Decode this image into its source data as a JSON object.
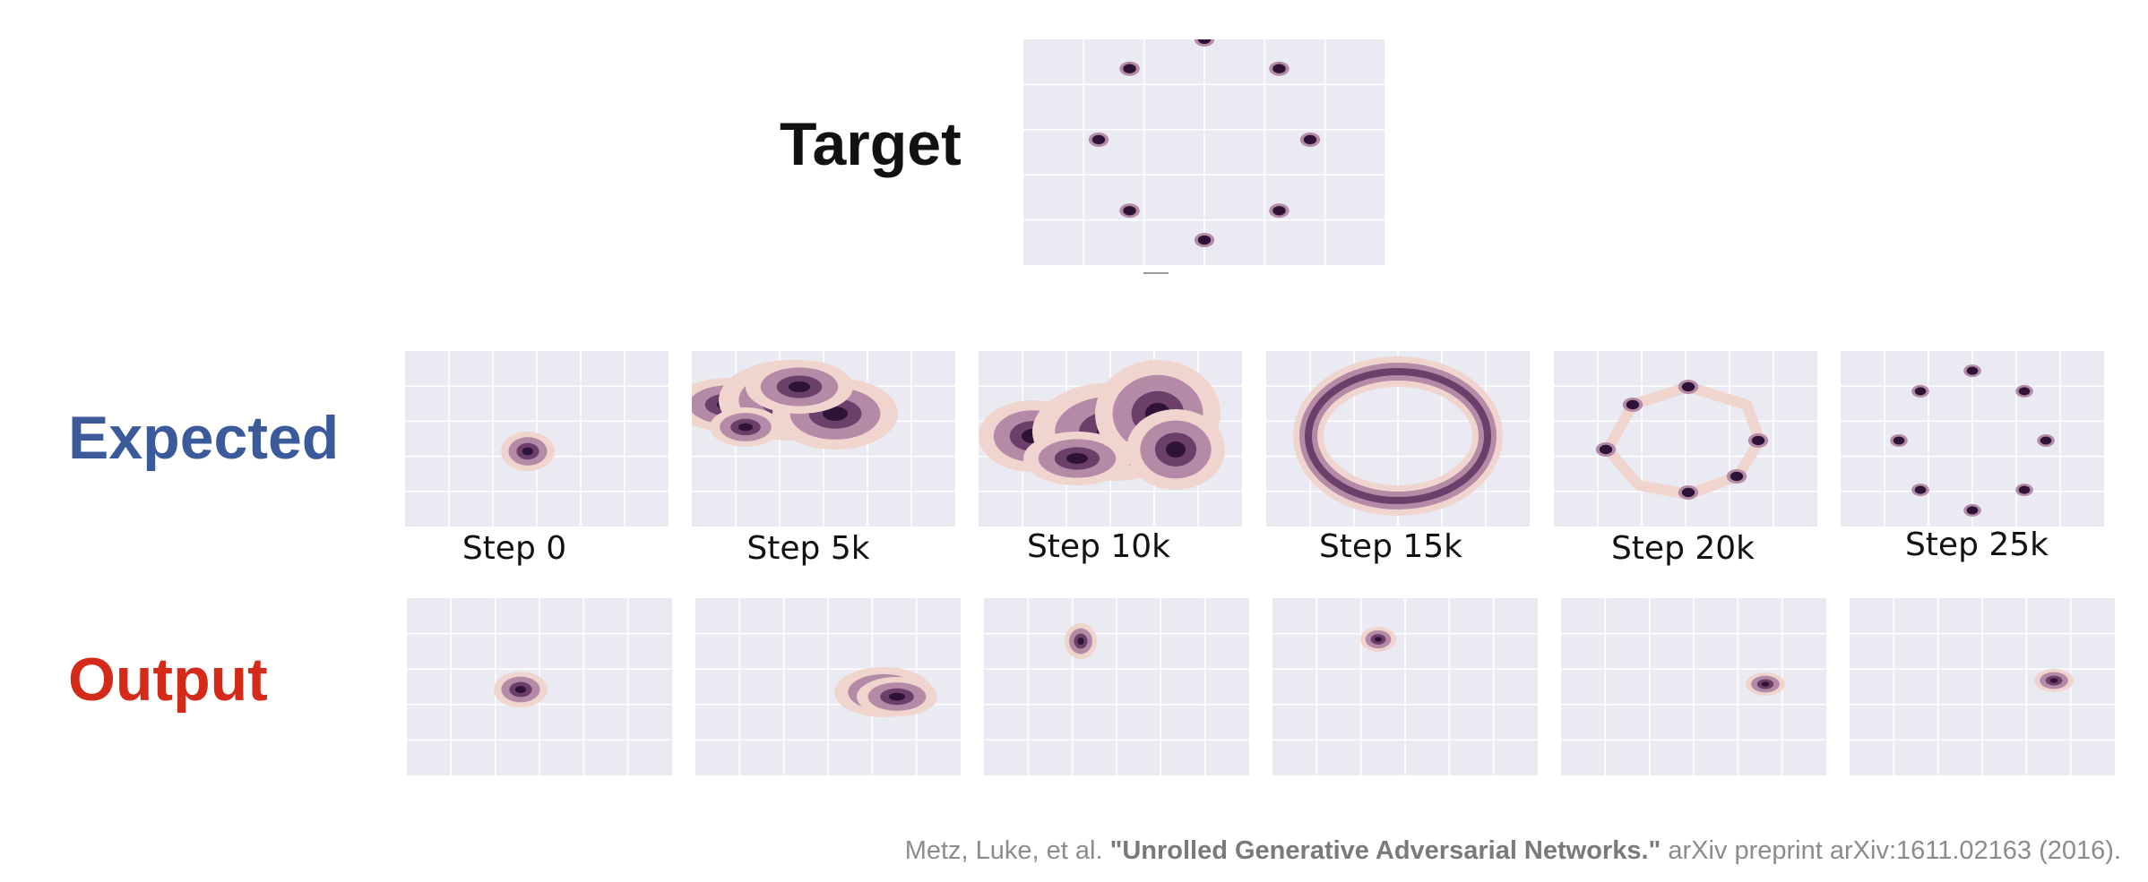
{
  "labels": {
    "target": "Target",
    "expected": "Expected",
    "output": "Output"
  },
  "steps": [
    "Step 0",
    "Step 5k",
    "Step 10k",
    "Step 15k",
    "Step 20k",
    "Step 25k"
  ],
  "citation": {
    "prefix": "Metz, Luke, et al. ",
    "title": "\"Unrolled Generative Adversarial Networks.\"",
    "suffix": " arXiv preprint arXiv:1611.02163 (2016)."
  },
  "colors": {
    "panel_bg": "#eaeaf2",
    "density_light": "#f0d5cf",
    "density_mid": "#b48aa6",
    "density_dark": "#2e1238",
    "expected_label": "#3b5a9a",
    "output_label": "#d42a1a"
  }
}
